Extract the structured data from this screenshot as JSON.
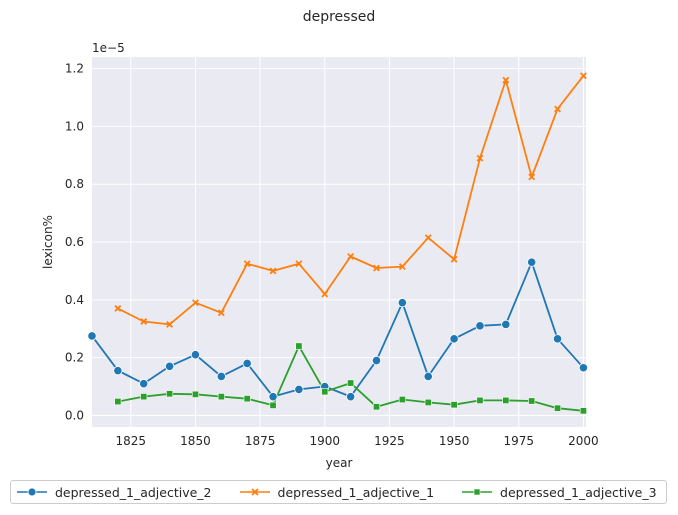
{
  "chart_data": {
    "type": "line",
    "title": "depressed",
    "xlabel": "year",
    "ylabel": "lexicon%",
    "y_scale_label": "1e−5",
    "xlim": [
      1810,
      2001
    ],
    "ylim": [
      -0.04,
      1.24
    ],
    "y_multiplier": 1e-05,
    "xticks": [
      1825,
      1850,
      1875,
      1900,
      1925,
      1950,
      1975,
      2000
    ],
    "yticks": [
      "0.0",
      "0.2",
      "0.4",
      "0.6",
      "0.8",
      "1.0",
      "1.2"
    ],
    "grid": true,
    "legend_position": "bottom",
    "series": [
      {
        "name": "depressed_1_adjective_2",
        "color": "#1f77b4",
        "marker": "circle",
        "x": [
          1810,
          1820,
          1830,
          1840,
          1850,
          1860,
          1870,
          1880,
          1890,
          1900,
          1910,
          1920,
          1930,
          1940,
          1950,
          1960,
          1970,
          1980,
          1990,
          2000
        ],
        "y": [
          0.275,
          0.155,
          0.11,
          0.17,
          0.21,
          0.135,
          0.18,
          0.065,
          0.09,
          0.1,
          0.065,
          0.19,
          0.39,
          0.135,
          0.265,
          0.31,
          0.315,
          0.53,
          0.265,
          0.165
        ]
      },
      {
        "name": "depressed_1_adjective_1",
        "color": "#ff7f0e",
        "marker": "x",
        "x": [
          1820,
          1830,
          1840,
          1850,
          1860,
          1870,
          1880,
          1890,
          1900,
          1910,
          1920,
          1930,
          1940,
          1950,
          1960,
          1970,
          1980,
          1990,
          2000
        ],
        "y": [
          0.37,
          0.325,
          0.315,
          0.39,
          0.355,
          0.525,
          0.5,
          0.525,
          0.42,
          0.55,
          0.51,
          0.515,
          0.615,
          0.54,
          0.89,
          1.16,
          0.825,
          1.06,
          1.175
        ]
      },
      {
        "name": "depressed_1_adjective_3",
        "color": "#2ca02c",
        "marker": "square",
        "x": [
          1820,
          1830,
          1840,
          1850,
          1860,
          1870,
          1880,
          1890,
          1900,
          1910,
          1920,
          1930,
          1940,
          1950,
          1960,
          1970,
          1980,
          1990,
          2000
        ],
        "y": [
          0.048,
          0.065,
          0.075,
          0.073,
          0.065,
          0.058,
          0.035,
          0.24,
          0.082,
          0.112,
          0.03,
          0.055,
          0.045,
          0.037,
          0.052,
          0.052,
          0.05,
          0.025,
          0.016
        ]
      }
    ]
  }
}
